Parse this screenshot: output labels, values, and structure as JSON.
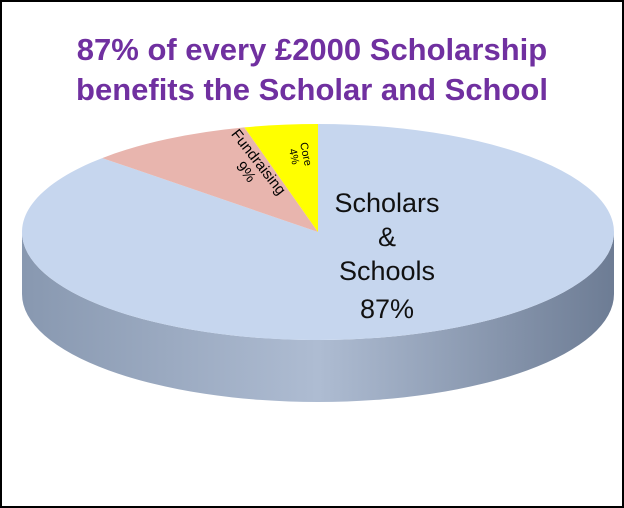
{
  "chart_data": {
    "type": "pie",
    "title": [
      "87% of every £2000 Scholarship",
      "benefits the Scholar and School"
    ],
    "categories": [
      "Scholars & Schools",
      "Fundraising",
      "Core"
    ],
    "values": [
      87,
      9,
      4
    ],
    "value_labels": [
      "87%",
      "9%",
      "4%"
    ],
    "colors": [
      "#c6d6ee",
      "#e8b5ae",
      "#ffff00"
    ]
  }
}
